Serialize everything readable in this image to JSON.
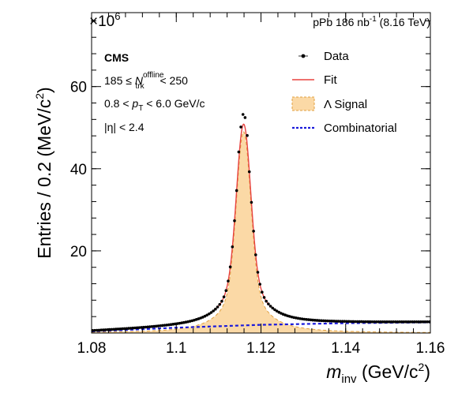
{
  "chart_data": {
    "type": "line",
    "title": "",
    "xlabel": {
      "var": "m",
      "var_sub": "inv",
      "unit_pre": " (GeV/c",
      "unit_sup": "2",
      "unit_post": ")"
    },
    "ylabel": {
      "pre": "Entries / 0.2 (MeV/c",
      "sup": "2",
      "post": ")"
    },
    "xlim": [
      1.08,
      1.16
    ],
    "ylim": [
      0,
      78
    ],
    "y_multiplier": {
      "base": "×10",
      "exp": "6"
    },
    "x_ticks": [
      1.08,
      1.1,
      1.12,
      1.14,
      1.16
    ],
    "x_tick_labels": [
      "1.08",
      "1.1",
      "1.12",
      "1.14",
      "1.16"
    ],
    "y_ticks": [
      20,
      40,
      60
    ],
    "y_tick_labels": [
      "20",
      "40",
      "60"
    ],
    "top_right_label": {
      "pre": "pPb 186 nb",
      "sup": "-1",
      "post": " (8.16 TeV)"
    },
    "annotations": {
      "experiment": "CMS",
      "line1": {
        "pre": "185 ≤ ",
        "var": "N",
        "sup": "offline",
        "sub": "trk",
        "post": " < 250"
      },
      "line2": {
        "pre": "0.8 < ",
        "var": "p",
        "sub": "T",
        "post": " < 6.0 GeV/c"
      },
      "line3": "|η| < 2.4"
    },
    "legend": {
      "placement": "top-right",
      "entries": [
        {
          "label": "Data",
          "style": "marker",
          "color": "#000000"
        },
        {
          "label": "Fit",
          "style": "line",
          "color": "#e8423f"
        },
        {
          "label": "Λ Signal",
          "style": "fill",
          "color": "#fbd9a6",
          "edge": "#e0a040"
        },
        {
          "label": "Combinatorial",
          "style": "dashed",
          "color": "#1a1adb"
        }
      ]
    },
    "model": {
      "peak_mass": 1.1159,
      "signal_peak_height": 49.0,
      "core_width": 0.0016,
      "tail_width": 0.0042,
      "core_fraction": 0.7,
      "background": {
        "x": [
          1.08,
          1.1,
          1.12,
          1.14,
          1.16
        ],
        "y": [
          0.4,
          1.3,
          2.0,
          2.4,
          2.6
        ]
      }
    },
    "series": [
      {
        "name": "Data",
        "x_range": [
          1.08,
          1.16
        ],
        "n_points": 160
      },
      {
        "name": "Fit"
      },
      {
        "name": "Λ Signal"
      },
      {
        "name": "Combinatorial"
      }
    ]
  }
}
